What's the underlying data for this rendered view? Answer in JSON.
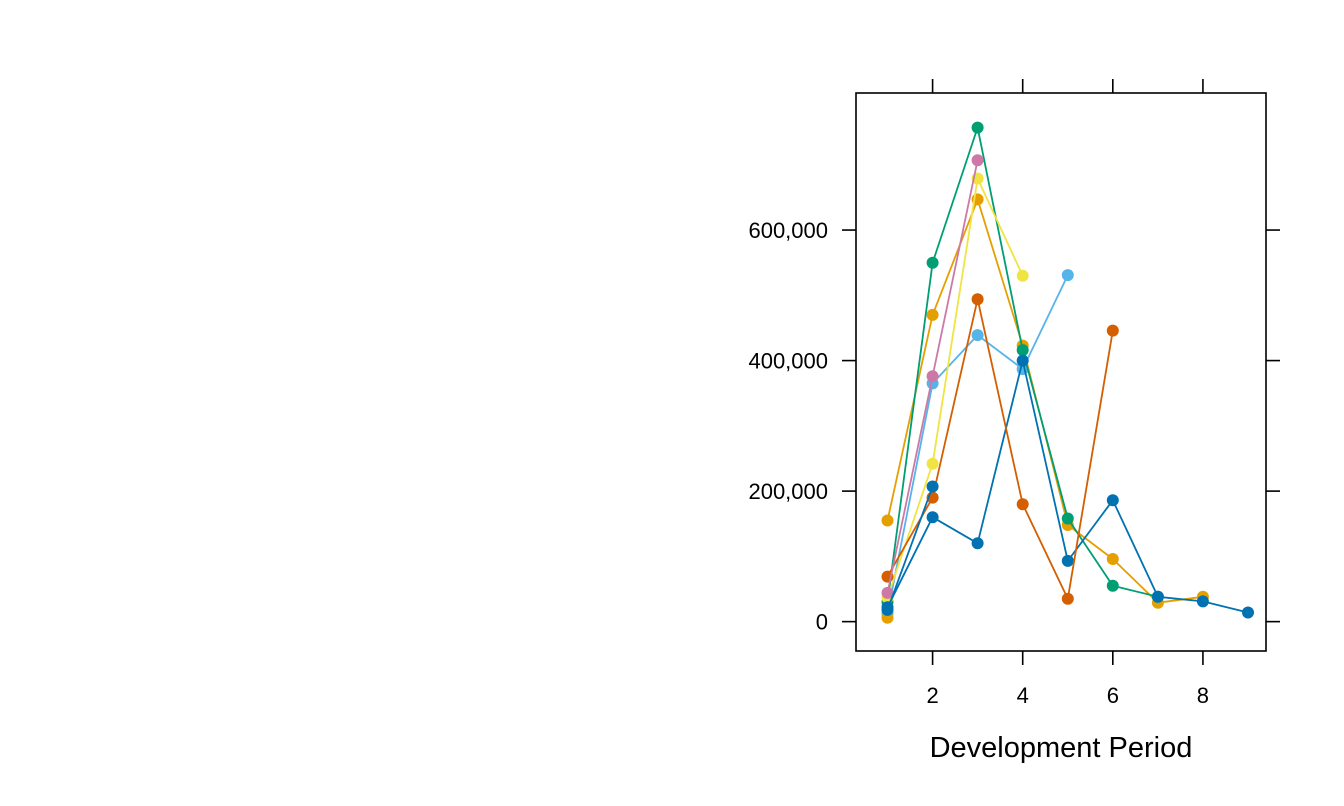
{
  "chart_data": {
    "type": "line",
    "title": "",
    "xlabel": "Development Period",
    "ylabel": "",
    "xlim": [
      0.3,
      9.4
    ],
    "ylim": [
      -45000,
      810000
    ],
    "x_ticks": [
      2,
      4,
      6,
      8
    ],
    "x_tick_labels": [
      "2",
      "4",
      "6",
      "8"
    ],
    "y_ticks": [
      0,
      200000,
      400000,
      600000
    ],
    "y_tick_labels": [
      "0",
      "200,000",
      "400,000",
      "600,000"
    ],
    "grid": false,
    "legend": "none",
    "series": [
      {
        "color": "#E69F00",
        "x": [
          1,
          2,
          3,
          4,
          5,
          6,
          7,
          8
        ],
        "y": [
          155000,
          470000,
          647000,
          423000,
          148000,
          96000,
          29000,
          38000
        ]
      },
      {
        "color": "#56B4E9",
        "x": [
          1,
          2,
          3,
          4,
          5
        ],
        "y": [
          12000,
          365000,
          439000,
          387000,
          531000
        ]
      },
      {
        "color": "#009E73",
        "x": [
          1,
          2,
          3,
          4,
          5,
          6,
          7
        ],
        "y": [
          30000,
          550000,
          757000,
          416000,
          158000,
          55000,
          38000
        ]
      },
      {
        "color": "#F0E442",
        "x": [
          1,
          2,
          3,
          4
        ],
        "y": [
          37000,
          242000,
          679000,
          530000
        ]
      },
      {
        "color": "#0072B2",
        "x": [
          1,
          2,
          3,
          4,
          5,
          6,
          7,
          8,
          9
        ],
        "y": [
          22000,
          160000,
          120000,
          400000,
          93000,
          186000,
          38000,
          31000,
          14000
        ]
      },
      {
        "color": "#D55E00",
        "x": [
          1,
          2,
          3,
          4,
          5,
          6
        ],
        "y": [
          69000,
          190000,
          494000,
          180000,
          35000,
          446000
        ]
      },
      {
        "color": "#CC79A7",
        "x": [
          1,
          2,
          3
        ],
        "y": [
          44000,
          376000,
          707000
        ]
      },
      {
        "color": "#E69F00",
        "x": [
          1
        ],
        "y": [
          6000
        ]
      },
      {
        "color": "#0072B2",
        "x": [
          1,
          2
        ],
        "y": [
          18000,
          207000
        ]
      }
    ]
  }
}
